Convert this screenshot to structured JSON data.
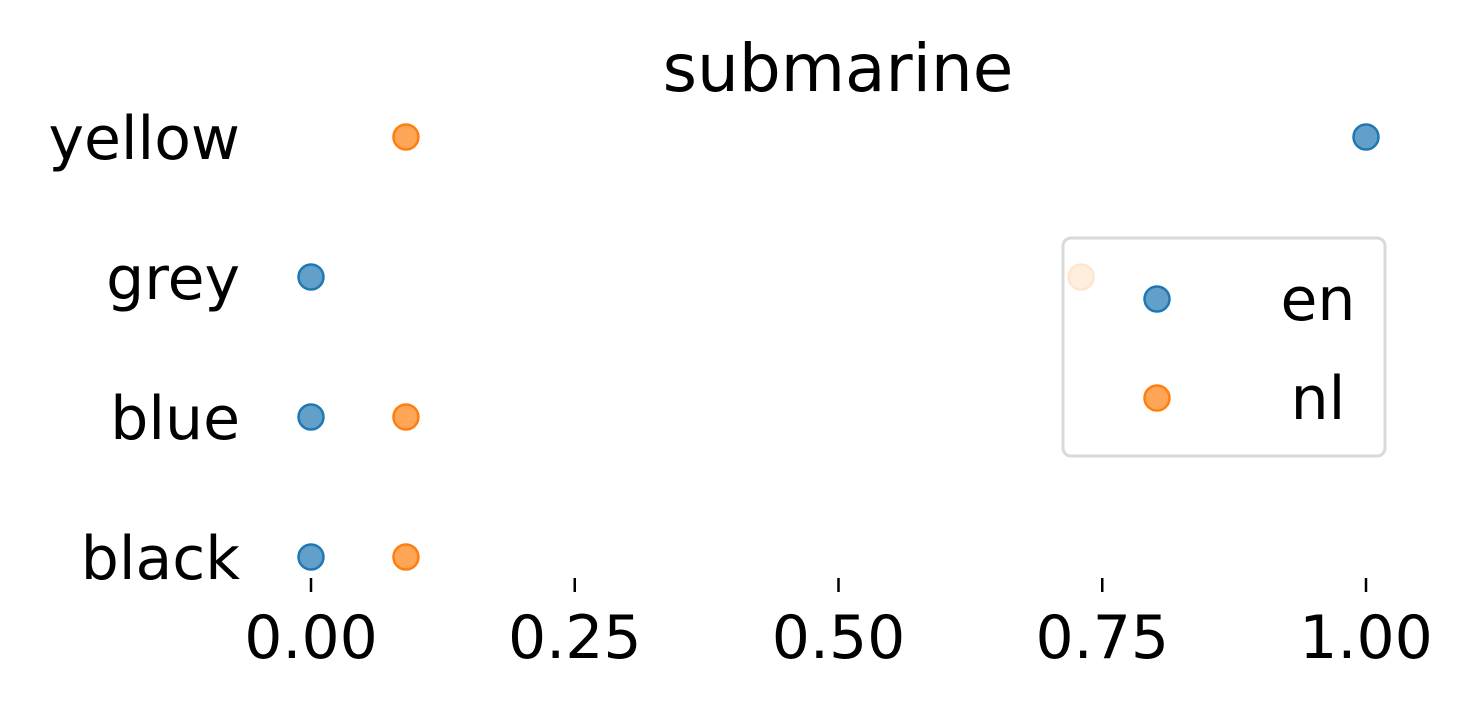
{
  "chart_data": {
    "type": "scatter",
    "title": "submarine",
    "categories": [
      "yellow",
      "grey",
      "blue",
      "black"
    ],
    "xticks": [
      "0.00",
      "0.25",
      "0.50",
      "0.75",
      "1.00"
    ],
    "xtick_values": [
      0,
      0.25,
      0.5,
      0.75,
      1.0
    ],
    "xlim": [
      -0.065,
      1.065
    ],
    "series": [
      {
        "name": "en",
        "color": "#1f77b4",
        "values": [
          1.0,
          0.0,
          0.0,
          0.0
        ]
      },
      {
        "name": "nl",
        "color": "#ff7f0e",
        "values": [
          0.09,
          0.73,
          0.09,
          0.09
        ]
      }
    ],
    "legend": {
      "position": "right",
      "entries": [
        "en",
        "nl"
      ]
    },
    "grid": false
  }
}
